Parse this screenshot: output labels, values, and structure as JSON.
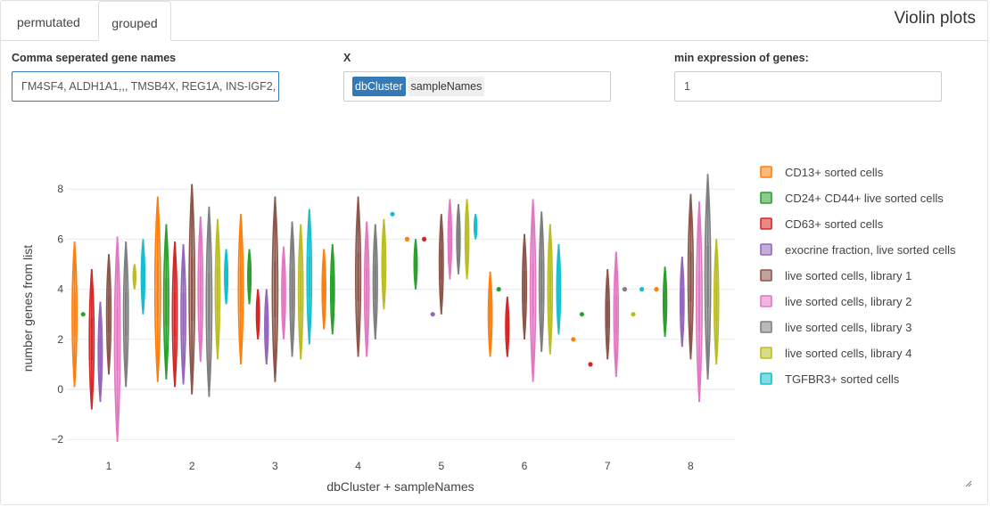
{
  "tabs": {
    "permutated_label": "permutated",
    "grouped_label": "grouped"
  },
  "panel_title": "Violin plots",
  "inputs": {
    "gene_label": "Comma seperated gene names",
    "gene_value": "ΓM4SF4, ALDH1A1,,, TMSB4X, REG1A,  INS-IGF2,",
    "x_label": "X",
    "x_selected": "dbCluster",
    "x_other": "sampleNames",
    "min_label": "min expression of genes:",
    "min_value": "1"
  },
  "colors": {
    "accent": "#337ab7",
    "series": [
      "#ff7f0e",
      "#2ca02c",
      "#d62728",
      "#9467bd",
      "#8c564b",
      "#e377c2",
      "#7f7f7f",
      "#bcbd22",
      "#17becf"
    ]
  },
  "chart_data": {
    "type": "violin",
    "xlabel": "dbCluster + sampleNames",
    "ylabel": "number genes from list",
    "ylim": [
      -2.5,
      8.5
    ],
    "yticks": [
      -2,
      0,
      2,
      4,
      6,
      8
    ],
    "categories": [
      "1",
      "2",
      "3",
      "4",
      "5",
      "6",
      "7",
      "8"
    ],
    "grid": true,
    "legend_position": "right",
    "series": [
      {
        "name": "CD13+ sorted cells",
        "violins": [
          {
            "x": 1,
            "min": 0.1,
            "max": 5.9
          },
          {
            "x": 2,
            "min": 0.3,
            "max": 7.7
          },
          {
            "x": 3,
            "min": 1,
            "max": 7
          },
          {
            "x": 4,
            "min": 2.4,
            "max": 5.6
          },
          {
            "x": 5,
            "min": 5.9,
            "max": 6.1,
            "point": 6
          },
          {
            "x": 6,
            "min": 1.3,
            "max": 4.7
          },
          {
            "x": 7,
            "min": 1.9,
            "max": 2.1,
            "point": 2
          },
          {
            "x": 8,
            "min": 3.9,
            "max": 4.1,
            "point": 4
          }
        ]
      },
      {
        "name": "CD24+ CD44+ live sorted cells",
        "violins": [
          {
            "x": 1,
            "min": 2.9,
            "max": 3.1,
            "point": 3
          },
          {
            "x": 2,
            "min": 0.4,
            "max": 6.6
          },
          {
            "x": 3,
            "min": 3.4,
            "max": 5.6
          },
          {
            "x": 4,
            "min": 2.2,
            "max": 5.8
          },
          {
            "x": 5,
            "min": 4,
            "max": 6
          },
          {
            "x": 6,
            "min": 3.9,
            "max": 4.1,
            "point": 4
          },
          {
            "x": 7,
            "min": 2.9,
            "max": 3.1,
            "point": 3
          },
          {
            "x": 8,
            "min": 2.1,
            "max": 4.9
          }
        ]
      },
      {
        "name": "CD63+ sorted cells",
        "violins": [
          {
            "x": 1,
            "min": -0.8,
            "max": 4.8
          },
          {
            "x": 2,
            "min": 0.1,
            "max": 5.9
          },
          {
            "x": 3,
            "min": 2,
            "max": 4
          },
          {
            "x": 5,
            "min": 5.9,
            "max": 6.1,
            "point": 6
          },
          {
            "x": 6,
            "min": 1.3,
            "max": 3.7
          },
          {
            "x": 7,
            "min": 0.9,
            "max": 1.1,
            "point": 1
          }
        ]
      },
      {
        "name": "exocrine fraction, live sorted cells",
        "violins": [
          {
            "x": 1,
            "min": -0.5,
            "max": 3.5
          },
          {
            "x": 2,
            "min": 0.2,
            "max": 5.8
          },
          {
            "x": 3,
            "min": 1,
            "max": 4
          },
          {
            "x": 5,
            "min": 2.9,
            "max": 3.1,
            "point": 3
          },
          {
            "x": 8,
            "min": 1.7,
            "max": 5.3
          }
        ]
      },
      {
        "name": "live sorted cells, library 1",
        "violins": [
          {
            "x": 1,
            "min": 0.6,
            "max": 5.4
          },
          {
            "x": 2,
            "min": -0.2,
            "max": 8.2
          },
          {
            "x": 3,
            "min": 0.3,
            "max": 7.7
          },
          {
            "x": 4,
            "min": 1.3,
            "max": 7.7
          },
          {
            "x": 5,
            "min": 3,
            "max": 7
          },
          {
            "x": 6,
            "min": 2,
            "max": 6.2
          },
          {
            "x": 7,
            "min": 1.2,
            "max": 4.8
          },
          {
            "x": 8,
            "min": 1.2,
            "max": 7.8
          }
        ]
      },
      {
        "name": "live sorted cells, library 2",
        "violins": [
          {
            "x": 1,
            "min": -2.1,
            "max": 6.1
          },
          {
            "x": 2,
            "min": 1.1,
            "max": 6.9
          },
          {
            "x": 3,
            "min": 2,
            "max": 5.7
          },
          {
            "x": 4,
            "min": 1.3,
            "max": 6.7
          },
          {
            "x": 5,
            "min": 4.4,
            "max": 7.6
          },
          {
            "x": 6,
            "min": 0.3,
            "max": 7.6
          },
          {
            "x": 7,
            "min": 0.5,
            "max": 5.5
          },
          {
            "x": 8,
            "min": -0.5,
            "max": 7.5
          }
        ]
      },
      {
        "name": "live sorted cells, library 3",
        "violins": [
          {
            "x": 1,
            "min": 0.1,
            "max": 5.9
          },
          {
            "x": 2,
            "min": -0.3,
            "max": 7.3
          },
          {
            "x": 3,
            "min": 1.3,
            "max": 6.7
          },
          {
            "x": 4,
            "min": 2,
            "max": 6.6
          },
          {
            "x": 5,
            "min": 4.6,
            "max": 7.4
          },
          {
            "x": 6,
            "min": 1.5,
            "max": 7.1
          },
          {
            "x": 7,
            "min": 3.9,
            "max": 4.1,
            "point": 4
          },
          {
            "x": 8,
            "min": 0.4,
            "max": 8.6
          }
        ]
      },
      {
        "name": "live sorted cells, library 4",
        "violins": [
          {
            "x": 1,
            "min": 4,
            "max": 5
          },
          {
            "x": 2,
            "min": 1.2,
            "max": 6.8
          },
          {
            "x": 3,
            "min": 1.2,
            "max": 6.6
          },
          {
            "x": 4,
            "min": 3.2,
            "max": 6.8
          },
          {
            "x": 5,
            "min": 4.4,
            "max": 7.6
          },
          {
            "x": 6,
            "min": 1.4,
            "max": 6.6
          },
          {
            "x": 7,
            "min": 2.9,
            "max": 3.1,
            "point": 3
          },
          {
            "x": 8,
            "min": 1,
            "max": 6
          }
        ]
      },
      {
        "name": "TGFBR3+ sorted cells",
        "violins": [
          {
            "x": 1,
            "min": 3,
            "max": 6
          },
          {
            "x": 2,
            "min": 3.4,
            "max": 5.6
          },
          {
            "x": 3,
            "min": 1.8,
            "max": 7.2
          },
          {
            "x": 4,
            "min": 6.9,
            "max": 7.1,
            "point": 7
          },
          {
            "x": 5,
            "min": 6,
            "max": 7
          },
          {
            "x": 6,
            "min": 2.2,
            "max": 5.8
          },
          {
            "x": 7,
            "min": 3.9,
            "max": 4.1,
            "point": 4
          }
        ]
      }
    ]
  }
}
